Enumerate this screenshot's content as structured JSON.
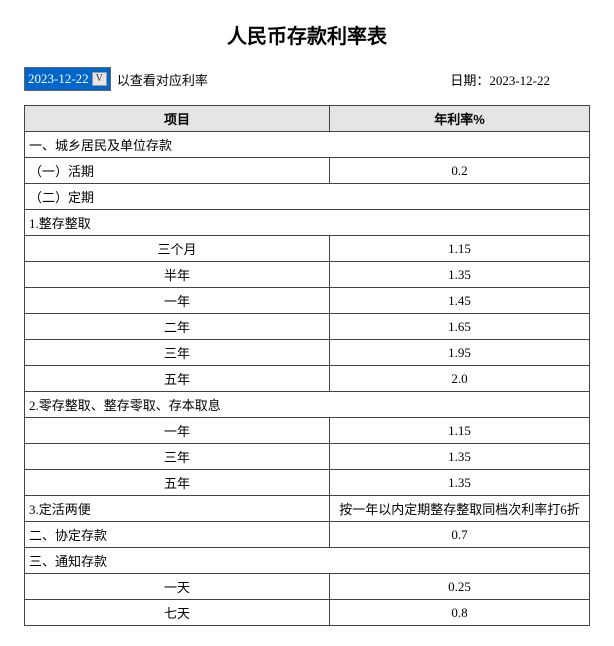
{
  "title": "人民币存款利率表",
  "selector": {
    "selected": "2023-12-22",
    "hint": "以查看对应利率"
  },
  "date_label": "日期：",
  "date_value": "2023-12-22",
  "headers": {
    "item": "项目",
    "rate": "年利率%"
  },
  "rows": [
    {
      "label": "一、城乡居民及单位存款",
      "rate": "",
      "section": true
    },
    {
      "label": "（一）活期",
      "rate": "0.2",
      "left": true
    },
    {
      "label": "（二）定期",
      "rate": "",
      "left": true,
      "section": true
    },
    {
      "label": "1.整存整取",
      "rate": "",
      "left": true,
      "section": true
    },
    {
      "label": "三个月",
      "rate": "1.15"
    },
    {
      "label": "半年",
      "rate": "1.35"
    },
    {
      "label": "一年",
      "rate": "1.45"
    },
    {
      "label": "二年",
      "rate": "1.65"
    },
    {
      "label": "三年",
      "rate": "1.95"
    },
    {
      "label": "五年",
      "rate": "2.0"
    },
    {
      "label": "2.零存整取、整存零取、存本取息",
      "rate": "",
      "left": true,
      "section": true
    },
    {
      "label": "一年",
      "rate": "1.15"
    },
    {
      "label": "三年",
      "rate": "1.35"
    },
    {
      "label": "五年",
      "rate": "1.35"
    },
    {
      "label": "3.定活两便",
      "rate": "按一年以内定期整存整取同档次利率打6折",
      "left": true
    },
    {
      "label": "二、协定存款",
      "rate": "0.7",
      "left": true
    },
    {
      "label": "三、通知存款",
      "rate": "",
      "left": true,
      "section": true
    },
    {
      "label": "一天",
      "rate": "0.25"
    },
    {
      "label": "七天",
      "rate": "0.8"
    }
  ]
}
